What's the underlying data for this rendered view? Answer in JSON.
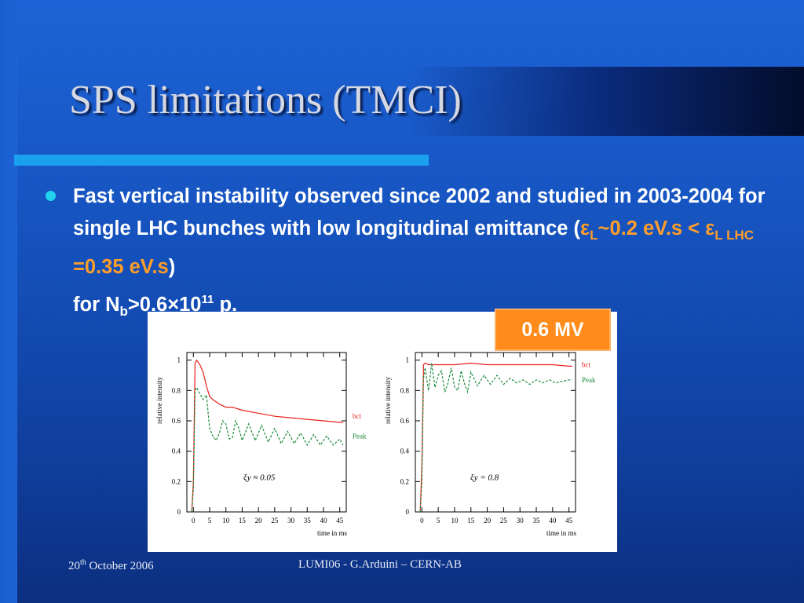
{
  "slide": {
    "title": "SPS limitations (TMCI)",
    "bullet": {
      "part1": "Fast vertical instability observed since 2002 and studied in 2003-2004  for single LHC bunches with low longitudinal emittance (",
      "eps1": "ε",
      "eps1_sub": "L",
      "tilde": "~",
      "val1": "0.2 eV.s",
      "lt": " < ",
      "eps2": "ε",
      "eps2_sub": "L LHC",
      "eq": " =",
      "val2": "0.35 eV.s",
      "close": ")",
      "line4_pre": "for N",
      "nb_sub": "b",
      "line4_mid": ">0.6×10",
      "exp": "11",
      "line4_post": " p."
    },
    "mv_label": "0.6 MV",
    "footer": {
      "date_day": "20",
      "date_sup": "th",
      "date_rest": " October 2006",
      "center": "LUMI06 - G.Arduini – CERN-AB"
    }
  },
  "colors": {
    "accent_orange": "#ff8c1a",
    "bct_color": "#e8201a",
    "peak_color": "#1a8a3a",
    "bullet_color": "#22d3f0"
  },
  "chart_data": [
    {
      "type": "line",
      "ylabel": "relative intensity",
      "xlabel": "time in ms",
      "xlim": [
        -2,
        47
      ],
      "ylim": [
        0,
        1.05
      ],
      "xticks": [
        0,
        5,
        10,
        15,
        20,
        25,
        30,
        35,
        40,
        45
      ],
      "yticks": [
        0,
        0.2,
        0.4,
        0.6,
        0.8,
        1
      ],
      "ytick_labels": [
        "0",
        "0.2",
        "0.4",
        "0.6",
        "0.8",
        "1"
      ],
      "annotation": "ξy ≈ 0.05",
      "series": [
        {
          "name": "bct",
          "x": [
            -0.5,
            0,
            0.5,
            1,
            2,
            3,
            4,
            5,
            6,
            8,
            10,
            12,
            15,
            20,
            25,
            30,
            35,
            40,
            45,
            46
          ],
          "y": [
            0,
            0.2,
            0.98,
            1.0,
            0.97,
            0.92,
            0.83,
            0.76,
            0.74,
            0.71,
            0.69,
            0.69,
            0.67,
            0.65,
            0.63,
            0.62,
            0.61,
            0.6,
            0.59,
            0.59
          ]
        },
        {
          "name": "Peak",
          "x": [
            -0.5,
            0,
            0.5,
            1,
            2,
            3,
            4,
            5,
            6,
            7,
            8,
            9,
            10,
            11,
            12,
            13,
            14,
            15,
            17,
            19,
            21,
            23,
            25,
            27,
            29,
            31,
            33,
            35,
            37,
            39,
            41,
            43,
            45,
            46
          ],
          "y": [
            0,
            0.15,
            0.8,
            0.82,
            0.78,
            0.74,
            0.77,
            0.55,
            0.5,
            0.47,
            0.52,
            0.6,
            0.58,
            0.48,
            0.49,
            0.6,
            0.55,
            0.47,
            0.58,
            0.47,
            0.57,
            0.46,
            0.55,
            0.45,
            0.53,
            0.45,
            0.52,
            0.44,
            0.51,
            0.44,
            0.5,
            0.44,
            0.48,
            0.44
          ]
        }
      ]
    },
    {
      "type": "line",
      "ylabel": "relative intensity",
      "xlabel": "time in ms",
      "xlim": [
        -2,
        47
      ],
      "ylim": [
        0,
        1.05
      ],
      "xticks": [
        0,
        5,
        10,
        15,
        20,
        25,
        30,
        35,
        40,
        45
      ],
      "yticks": [
        0,
        0.2,
        0.4,
        0.6,
        0.8,
        1
      ],
      "ytick_labels": [
        "0",
        "0.2",
        "0.4",
        "0.6",
        "0.8",
        "1"
      ],
      "annotation": "ξy = 0.8",
      "series": [
        {
          "name": "bct",
          "x": [
            -0.5,
            0,
            0.5,
            1,
            2,
            5,
            10,
            15,
            20,
            25,
            30,
            35,
            40,
            45,
            46
          ],
          "y": [
            0,
            0.3,
            0.97,
            0.98,
            0.97,
            0.97,
            0.97,
            0.98,
            0.97,
            0.97,
            0.97,
            0.97,
            0.97,
            0.96,
            0.96
          ]
        },
        {
          "name": "Peak",
          "x": [
            -0.5,
            0,
            0.5,
            1,
            2,
            3,
            4,
            5,
            6,
            7,
            8,
            9,
            10,
            11,
            12,
            13,
            14,
            15,
            17,
            19,
            21,
            23,
            25,
            27,
            29,
            31,
            33,
            35,
            37,
            39,
            41,
            43,
            45,
            46
          ],
          "y": [
            0,
            0.2,
            0.88,
            0.95,
            0.8,
            0.98,
            0.82,
            0.9,
            0.93,
            0.79,
            0.85,
            0.95,
            0.82,
            0.8,
            0.93,
            0.85,
            0.79,
            0.92,
            0.83,
            0.9,
            0.84,
            0.9,
            0.84,
            0.88,
            0.85,
            0.87,
            0.84,
            0.87,
            0.85,
            0.87,
            0.85,
            0.86,
            0.87,
            0.87
          ]
        }
      ]
    }
  ]
}
